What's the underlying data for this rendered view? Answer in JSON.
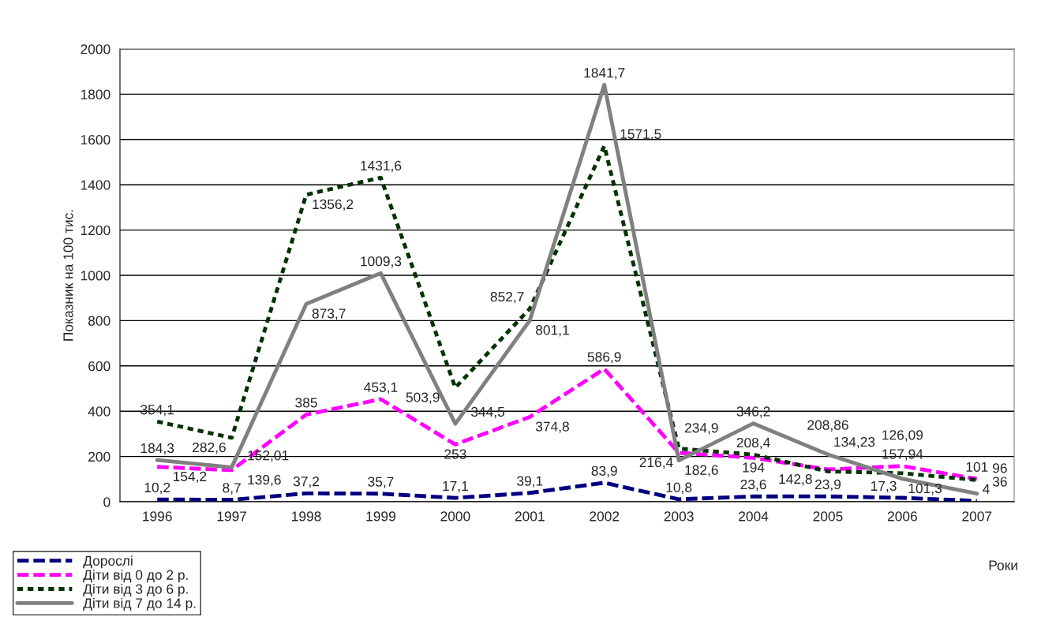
{
  "chart_data": {
    "type": "line",
    "xlabel": "Роки",
    "ylabel": "Показник на 100 тис.",
    "categories": [
      "1996",
      "1997",
      "1998",
      "1999",
      "2000",
      "2001",
      "2002",
      "2003",
      "2004",
      "2005",
      "2006",
      "2007"
    ],
    "ylim": [
      0,
      2000
    ],
    "yticks": [
      0,
      200,
      400,
      600,
      800,
      1000,
      1200,
      1400,
      1600,
      1800,
      2000
    ],
    "grid": "y",
    "legend": "bottom left",
    "marker": "none",
    "series": [
      {
        "name": "Дорослі",
        "color": "#000080",
        "line_style": "dashed",
        "values": [
          10.2,
          8.7,
          37.2,
          35.7,
          17.1,
          39.1,
          83.9,
          10.8,
          23.6,
          23.9,
          17.3,
          4
        ],
        "value_labels": [
          "10,2",
          "8,7",
          "37,2",
          "35,7",
          "17,1",
          "39,1",
          "83,9",
          "10,8",
          "23,6",
          "23,9",
          "17,3",
          "4"
        ]
      },
      {
        "name": "Діти від 0 до 2 р.",
        "color": "#ff00ff",
        "line_style": "dashed",
        "values": [
          154.2,
          139.6,
          385,
          453.1,
          253,
          374.8,
          586.9,
          216.4,
          194,
          142.8,
          157.94,
          101
        ],
        "value_labels": [
          "154,2",
          "139,6",
          "385",
          "453,1",
          "253",
          "374,8",
          "586,9",
          "216,4",
          "194",
          "142,8",
          "157,94",
          "101"
        ]
      },
      {
        "name": "Діти від 3 до 6 р.",
        "color": "#003300",
        "line_style": "dotted",
        "values": [
          354.1,
          282.6,
          1356.2,
          1431.6,
          503.9,
          852.7,
          1571.5,
          234.9,
          208.4,
          134.23,
          126.09,
          96
        ],
        "value_labels": [
          "354,1",
          "282,6",
          "1356,2",
          "1431,6",
          "503,9",
          "852,7",
          "1571,5",
          "234,9",
          "208,4",
          "134,23",
          "126,09",
          "96"
        ]
      },
      {
        "name": "Діти від 7 до 14 р.",
        "color": "#808080",
        "line_style": "solid",
        "values": [
          184.3,
          152.01,
          873.7,
          1009.3,
          344.5,
          801.1,
          1841.7,
          182.6,
          346.2,
          208.86,
          101.3,
          36
        ],
        "value_labels": [
          "184,3",
          "152,01",
          "873,7",
          "1009,3",
          "344,5",
          "801,1",
          "1841,7",
          "182,6",
          "346,2",
          "208,86",
          "101,3",
          "36"
        ]
      }
    ]
  }
}
